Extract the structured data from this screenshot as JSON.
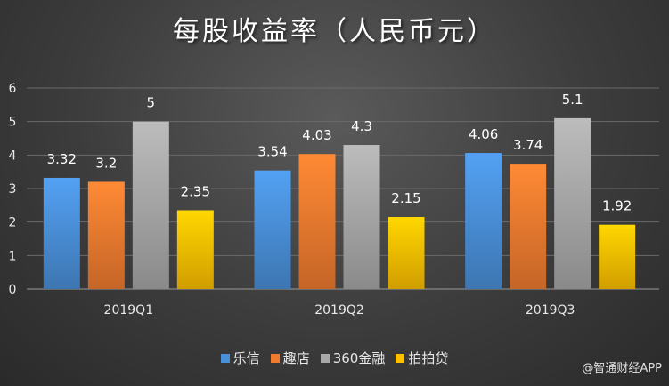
{
  "chart_data": {
    "type": "bar",
    "title": "每股收益率（人民币元）",
    "categories": [
      "2019Q1",
      "2019Q2",
      "2019Q3"
    ],
    "series": [
      {
        "name": "乐信",
        "values": [
          3.32,
          3.54,
          4.06
        ],
        "color": "#4a90d9"
      },
      {
        "name": "趣店",
        "values": [
          3.2,
          4.03,
          3.74
        ],
        "color": "#f07b2f"
      },
      {
        "name": "360金融",
        "values": [
          5,
          4.3,
          5.1
        ],
        "color": "#a8a8a8"
      },
      {
        "name": "拍拍贷",
        "values": [
          2.35,
          2.15,
          1.92
        ],
        "color": "#ffc000"
      }
    ],
    "value_labels": [
      [
        "3.32",
        "3.54",
        "4.06"
      ],
      [
        "3.2",
        "4.03",
        "3.74"
      ],
      [
        "5",
        "4.3",
        "5.1"
      ],
      [
        "2.35",
        "2.15",
        "1.92"
      ]
    ],
    "ylim": [
      0,
      6
    ],
    "yticks": [
      "0",
      "1",
      "2",
      "3",
      "4",
      "5",
      "6"
    ],
    "grid": true,
    "legend_position": "bottom"
  },
  "watermark": "@智通财经APP"
}
